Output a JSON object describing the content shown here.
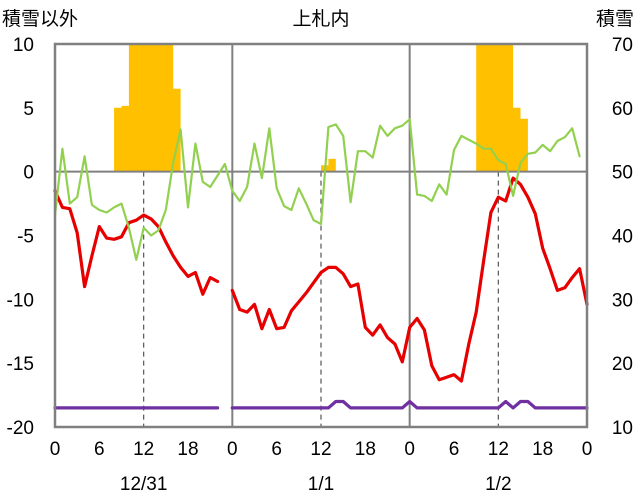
{
  "chart_data": {
    "type": "line",
    "title": "上札内",
    "left_axis": {
      "label": "積雪以外",
      "min": -20,
      "max": 10,
      "ticks": [
        10,
        5,
        0,
        -5,
        -10,
        -15,
        -20
      ]
    },
    "right_axis": {
      "label": "積雪",
      "min": 10,
      "max": 70,
      "ticks": [
        70,
        60,
        50,
        40,
        30,
        20,
        10
      ]
    },
    "x_axis": {
      "hour_ticks": [
        "0",
        "6",
        "12",
        "18",
        "0",
        "6",
        "12",
        "18",
        "0",
        "6",
        "12",
        "18",
        "0"
      ],
      "date_labels": [
        "12/31",
        "1/1",
        "1/2"
      ]
    },
    "series": [
      {
        "color": "#e60000",
        "axis": "left",
        "start_hour": 0,
        "values": [
          -1.5,
          -2.8,
          -2.9,
          -4.8,
          -9.0,
          -6.6,
          -4.3,
          -5.2,
          -5.3,
          -5.1,
          -4.0,
          -3.8,
          -3.4,
          -3.7,
          -4.3,
          -5.5,
          -6.6,
          -7.5,
          -8.2,
          -7.9,
          -9.6,
          -8.3,
          -8.6,
          null,
          -9.3,
          -10.8,
          -11.0,
          -10.4,
          -12.3,
          -10.8,
          -12.3,
          -12.2,
          -10.9,
          -10.2,
          -9.5,
          -8.7,
          -7.9,
          -7.5,
          -7.5,
          -8.0,
          -9.0,
          -8.8,
          -12.2,
          -12.8,
          -12.0,
          -13.0,
          -13.5,
          -14.9,
          -12.2,
          -11.5,
          -12.4,
          -15.2,
          -16.3,
          -16.1,
          -15.9,
          -16.4,
          -13.5,
          -11.0,
          -7.0,
          -3.2,
          -2.0,
          -2.3,
          -0.5,
          -1.0,
          -2.0,
          -3.3,
          -6.0,
          -7.6,
          -9.3,
          -9.1,
          -8.3,
          -7.6,
          -10.4
        ]
      },
      {
        "color": "#92d050",
        "axis": "left",
        "start_hour": 0,
        "values": [
          -3.4,
          1.8,
          -2.5,
          -2.0,
          1.2,
          -2.6,
          -3.0,
          -3.2,
          -2.8,
          -2.5,
          -4.4,
          -6.9,
          -4.4,
          -5.0,
          -4.6,
          -3.0,
          0.7,
          3.3,
          -2.8,
          2.2,
          -0.8,
          -1.2,
          -0.3,
          0.6,
          -1.5,
          -2.3,
          -1.2,
          2.2,
          -0.5,
          3.4,
          -1.3,
          -2.7,
          -3.0,
          -1.3,
          -2.5,
          -3.8,
          -4.1,
          3.5,
          3.7,
          2.8,
          -2.4,
          1.6,
          1.6,
          1.1,
          3.6,
          2.8,
          3.4,
          3.6,
          4.1,
          -1.8,
          -1.9,
          -2.3,
          -1.0,
          -1.8,
          1.7,
          2.8,
          2.5,
          2.2,
          1.8,
          1.8,
          0.9,
          0.6,
          -1.9,
          0.7,
          1.4,
          1.5,
          2.1,
          1.6,
          2.4,
          2.7,
          3.4,
          1.2
        ]
      },
      {
        "color": "#7030a0",
        "axis": "left",
        "start_hour": 0,
        "values": [
          -18.5,
          -18.5,
          -18.5,
          -18.5,
          -18.5,
          -18.5,
          -18.5,
          -18.5,
          -18.5,
          -18.5,
          -18.5,
          -18.5,
          -18.5,
          -18.5,
          -18.5,
          -18.5,
          -18.5,
          -18.5,
          -18.5,
          -18.5,
          -18.5,
          -18.5,
          -18.5,
          null,
          -18.5,
          -18.5,
          -18.5,
          -18.5,
          -18.5,
          -18.5,
          -18.5,
          -18.5,
          -18.5,
          -18.5,
          -18.5,
          -18.5,
          -18.5,
          -18.5,
          -18.0,
          -18.0,
          -18.5,
          -18.5,
          -18.5,
          -18.5,
          -18.5,
          -18.5,
          -18.5,
          -18.5,
          -18.0,
          -18.5,
          -18.5,
          -18.5,
          -18.5,
          -18.5,
          -18.5,
          -18.5,
          -18.5,
          -18.5,
          -18.5,
          -18.5,
          -18.5,
          -18.0,
          -18.5,
          -18.0,
          -18.0,
          -18.5,
          -18.5,
          -18.5,
          -18.5,
          -18.5,
          -18.5,
          -18.5,
          -18.5
        ]
      },
      {
        "color": "#ffc000",
        "axis": "right",
        "kind": "area",
        "points": [
          [
            8,
            50
          ],
          [
            8,
            60
          ],
          [
            9,
            60
          ],
          [
            9,
            60.3
          ],
          [
            10,
            60.3
          ],
          [
            10,
            70
          ],
          [
            16,
            70
          ],
          [
            16,
            63
          ],
          [
            17,
            63
          ],
          [
            17,
            50
          ],
          [
            36,
            50
          ],
          [
            36,
            51
          ],
          [
            37,
            51
          ],
          [
            37,
            52
          ],
          [
            38,
            52
          ],
          [
            38,
            50
          ],
          [
            57,
            50
          ],
          [
            57,
            70
          ],
          [
            62,
            70
          ],
          [
            62,
            60
          ],
          [
            63,
            60
          ],
          [
            63,
            58.3
          ],
          [
            64,
            58.3
          ],
          [
            64,
            50
          ]
        ]
      }
    ]
  }
}
